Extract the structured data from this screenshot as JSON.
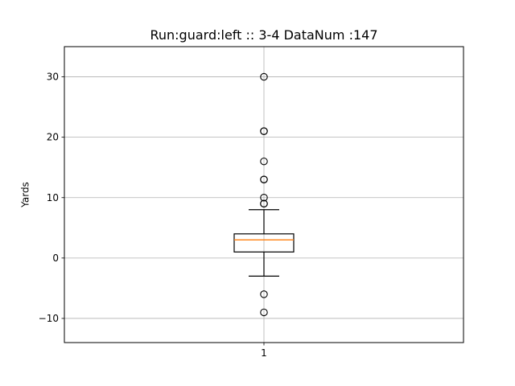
{
  "chart_data": {
    "type": "box",
    "title": "Run:guard:left :: 3-4    DataNum :147",
    "xlabel": "",
    "ylabel": "Yards",
    "categories": [
      "1"
    ],
    "ylim": [
      -14,
      35
    ],
    "yticks": [
      -10,
      0,
      10,
      20,
      30
    ],
    "grid": true,
    "series": [
      {
        "category": "1",
        "whisker_low": -3,
        "q1": 1,
        "median": 3,
        "q3": 4,
        "whisker_high": 8,
        "outliers": [
          -9,
          -6,
          9,
          9,
          10,
          13,
          13,
          16,
          21,
          21,
          30
        ]
      }
    ],
    "colors": {
      "box": "#000000",
      "median": "#ff7f0e",
      "grid": "#b0b0b0"
    }
  }
}
